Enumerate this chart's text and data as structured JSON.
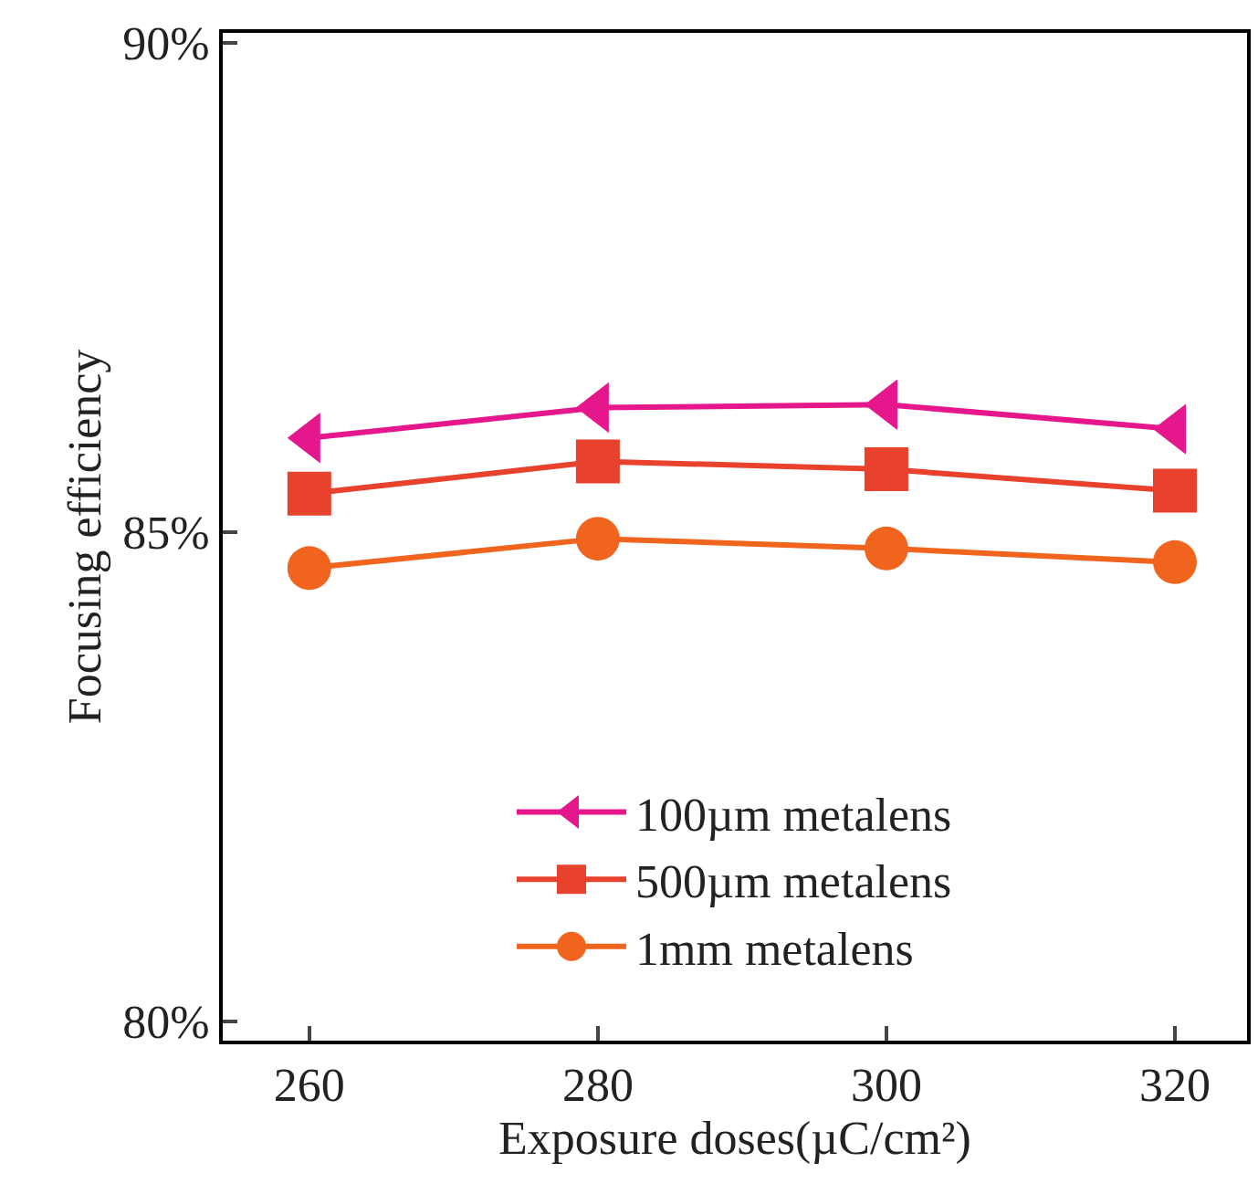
{
  "chart_data": {
    "type": "line",
    "xlabel": "Exposure doses(µC/cm²)",
    "ylabel": "Focusing efficiency",
    "x": [
      260,
      280,
      300,
      320
    ],
    "xlim": [
      254,
      325
    ],
    "xticks": [
      260,
      280,
      300,
      320
    ],
    "ylim": [
      79.8,
      90.1
    ],
    "yticks": [
      {
        "value": 80,
        "label": "80%"
      },
      {
        "value": 85,
        "label": "85%"
      },
      {
        "value": 90,
        "label": "90%"
      }
    ],
    "legend": "bottom",
    "series": [
      {
        "name": "100µm metalens",
        "color": "#e6168c",
        "marker": "triangle",
        "values": [
          85.96,
          86.27,
          86.3,
          86.05
        ]
      },
      {
        "name": "500µm metalens",
        "color": "#e8412c",
        "marker": "square",
        "values": [
          85.39,
          85.72,
          85.64,
          85.42
        ]
      },
      {
        "name": "1mm metalens",
        "color": "#f0641e",
        "marker": "circle",
        "values": [
          84.63,
          84.93,
          84.83,
          84.69
        ]
      }
    ]
  }
}
